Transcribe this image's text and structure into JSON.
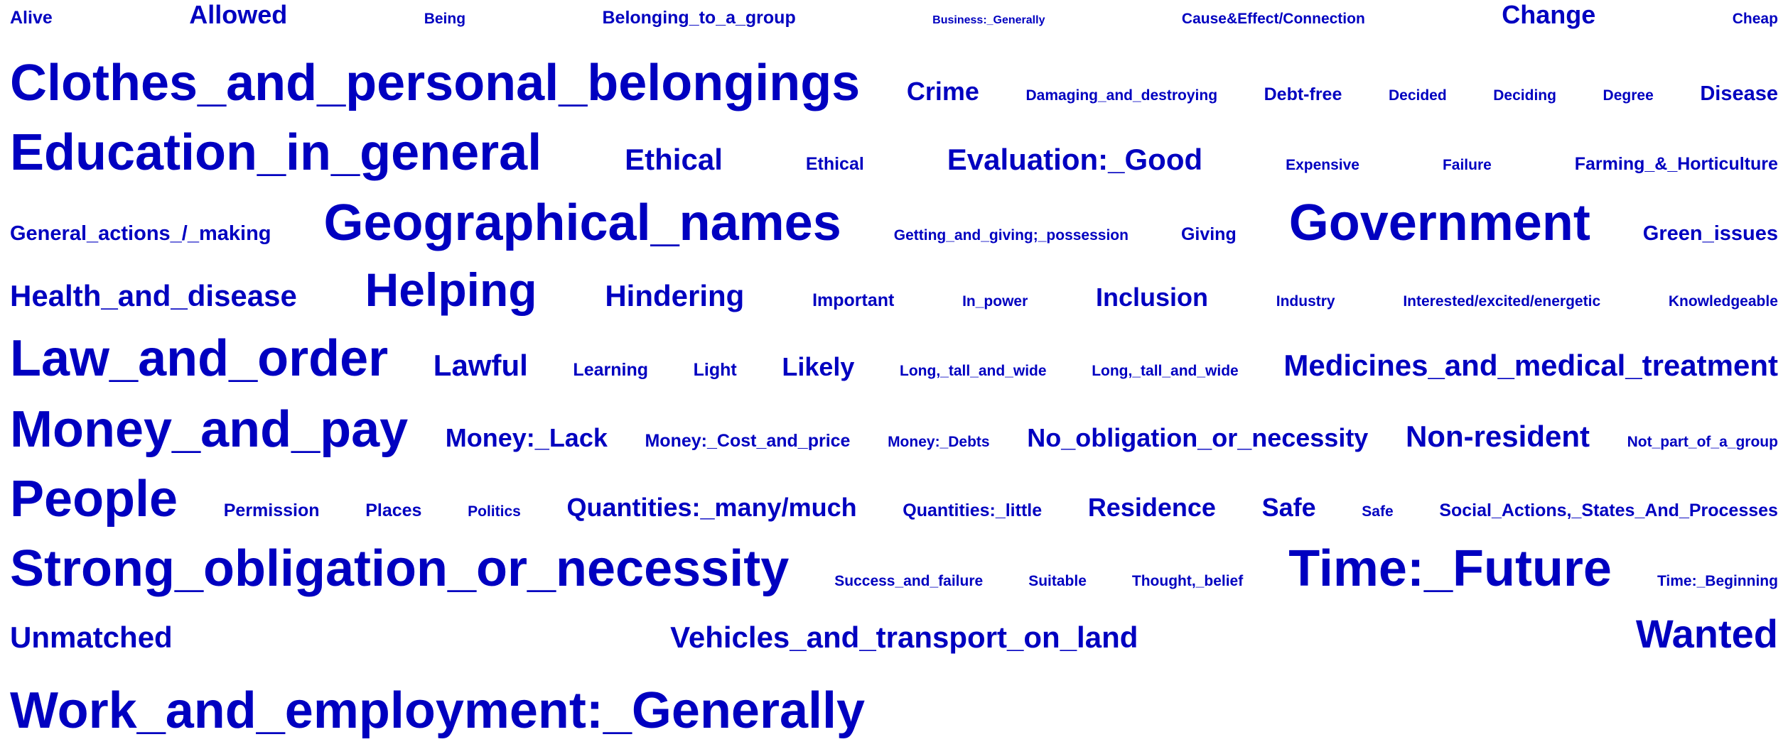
{
  "words": [
    "Alive",
    "Allowed",
    "Being",
    "Belonging_to_a_group",
    "Business:_Generally",
    "Cause&Effect/Connection",
    "Change",
    "Cheap",
    "Clothes_and_personal_belongings",
    "Crime",
    "Damaging_and_destroying",
    "Debt-free",
    "Decided",
    "Deciding",
    "Degree",
    "Disease",
    "Education_in_general",
    "Ethical",
    "Ethical",
    "Evaluation:_Good",
    "Expensive",
    "Failure",
    "Farming_&_Horticulture",
    "General_actions_/_making",
    "Geographical_names",
    "Getting_and_giving;_possession",
    "Giving",
    "Government",
    "Green_issues",
    "Health_and_disease",
    "Helping",
    "Hindering",
    "Important",
    "In_power",
    "Inclusion",
    "Industry",
    "Interested/excited/energetic",
    "Knowledgeable",
    "Law_and_order",
    "Lawful",
    "Learning",
    "Light",
    "Likely",
    "Long,_tall_and_wide",
    "Long,_tall_and_wide",
    "Medicines_and_medical_treatment",
    "Money_and_pay",
    "Money:_Lack",
    "Money:_Cost_and_price",
    "Money:_Debts",
    "No_obligation_or_necessity",
    "Non-resident",
    "Not_part_of_a_group",
    "People",
    "Permission",
    "Places",
    "Politics",
    "Quantities:_many/much",
    "Quantities:_little",
    "Residence",
    "Safe",
    "Safe",
    "Social_Actions,_States_And_Processes",
    "Strong_obligation_or_necessity",
    "Success_and_failure",
    "Suitable",
    "Thought,_belief",
    "Time:_Future",
    "Time:_Beginning",
    "Unmatched",
    "Vehicles_and_transport_on_land",
    "Wanted",
    "Work_and_employment:_Generally"
  ],
  "colors": {
    "word": "#0000c0",
    "background": "#ffffff"
  }
}
